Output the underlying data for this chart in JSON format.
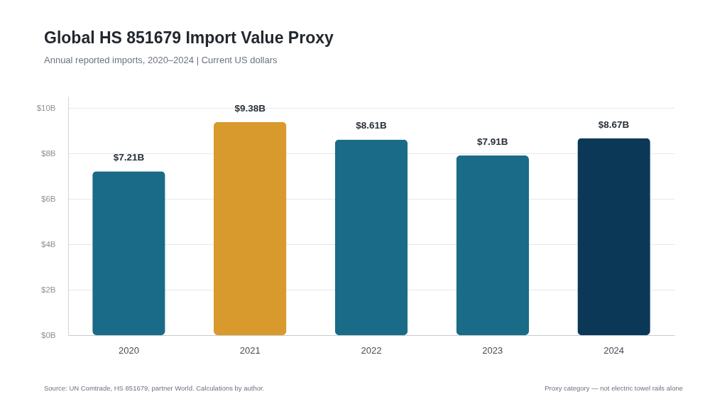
{
  "chart_data": {
    "type": "bar",
    "title": "Global HS 851679 Import Value Proxy",
    "subtitle": "Annual reported imports, 2020–2024 | Current US dollars",
    "categories": [
      "2020",
      "2021",
      "2022",
      "2023",
      "2024"
    ],
    "values": [
      7.21,
      9.38,
      8.61,
      7.91,
      8.67
    ],
    "value_labels": [
      "$7.21B",
      "$9.38B",
      "$8.61B",
      "$7.91B",
      "$8.67B"
    ],
    "colors": [
      "#196b87",
      "#d99a2d",
      "#196b87",
      "#196b87",
      "#0c3858"
    ],
    "ylim": [
      0,
      10.5
    ],
    "yticks": [
      {
        "value": 0,
        "label": "$0B"
      },
      {
        "value": 2,
        "label": "$2B"
      },
      {
        "value": 4,
        "label": "$4B"
      },
      {
        "value": 6,
        "label": "$6B"
      },
      {
        "value": 8,
        "label": "$8B"
      },
      {
        "value": 10,
        "label": "$10B"
      }
    ],
    "grid": "y",
    "annotations": [
      "Source: UN Comtrade, HS 851679, partner World. Calculations by author.",
      "Proxy category — not electric towel rails alone"
    ]
  }
}
